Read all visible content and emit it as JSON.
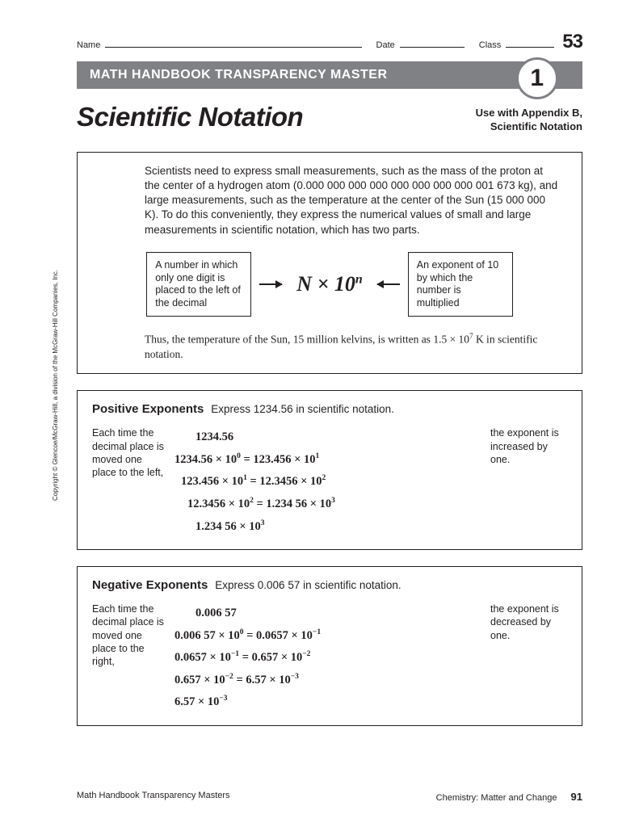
{
  "header": {
    "name_label": "Name",
    "date_label": "Date",
    "class_label": "Class",
    "page_num_top": "53"
  },
  "banner": {
    "text": "MATH HANDBOOK TRANSPARENCY MASTER",
    "circle_num": "1"
  },
  "title": "Scientific Notation",
  "subtitle_line1": "Use with Appendix B,",
  "subtitle_line2": "Scientific Notation",
  "intro": "Scientists need to express small measurements, such as the mass of the proton at the center of a hydrogen atom (0.000 000 000 000 000 000 000 000 001 673 kg), and large measurements, such as the temperature at the center of the Sun (15 000 000 K). To do this conveniently, they express the numerical values of small and large measurements in scientific notation, which has two parts.",
  "left_box": "A number in which only one digit is placed to the left of the decimal",
  "right_box": "An exponent of 10 by which the number is multiplied",
  "outro": "Thus, the temperature of the Sun, 15 million kelvins, is written as 1.5 × 10⁷ K in scientific notation.",
  "positive": {
    "title": "Positive Exponents",
    "subtitle": "Express 1234.56 in scientific notation.",
    "left_note": "Each time the decimal place is moved one place to the left,",
    "right_note": "the exponent is increased by one.",
    "line0": "1234.56"
  },
  "negative": {
    "title": "Negative Exponents",
    "subtitle": "Express 0.006 57 in scientific notation.",
    "left_note": "Each time the decimal place is moved one place to the right,",
    "right_note": "the exponent is decreased by one.",
    "line0": "0.006 57"
  },
  "footer": {
    "left": "Math Handbook Transparency Masters",
    "right": "Chemistry: Matter and Change",
    "page": "91"
  },
  "copyright": "Copyright © Glencoe/McGraw-Hill, a division of the McGraw-Hill Companies, Inc.",
  "colors": {
    "banner_bg": "#808184",
    "text": "#231f20"
  }
}
